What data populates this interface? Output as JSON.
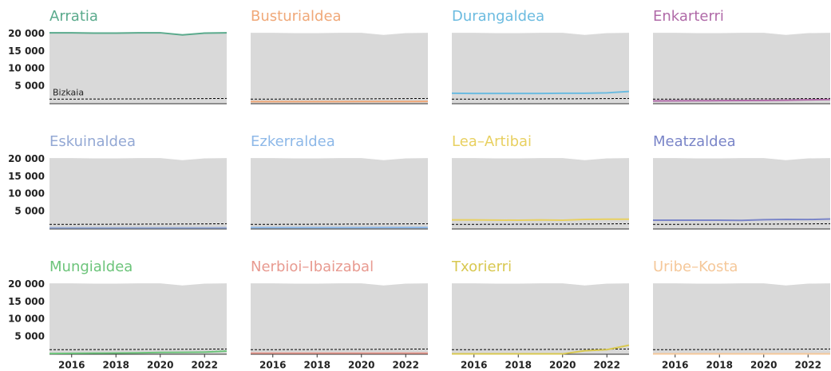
{
  "chart_data": {
    "type": "line",
    "x": [
      2015,
      2016,
      2017,
      2018,
      2019,
      2020,
      2021,
      2022,
      2023
    ],
    "xlim": [
      2015,
      2023
    ],
    "xticks": [
      2016,
      2018,
      2020,
      2022
    ],
    "ylim": [
      0,
      21000
    ],
    "yticks": [
      {
        "value": 5000,
        "label": "5 000"
      },
      {
        "value": 10000,
        "label": "10 000"
      },
      {
        "value": 15000,
        "label": "15 000"
      },
      {
        "value": 20000,
        "label": "20 000"
      }
    ],
    "reference": {
      "name": "Bizkaia",
      "color": "#000000",
      "values": [
        1300,
        1320,
        1340,
        1360,
        1380,
        1400,
        1420,
        1460,
        1500
      ]
    },
    "series": [
      {
        "name": "Arratia",
        "color": "#5aaa8c",
        "values": [
          20300,
          20300,
          20200,
          20200,
          20300,
          20300,
          19700,
          20200,
          20300
        ]
      },
      {
        "name": "Busturialdea",
        "color": "#f0a878",
        "values": [
          600,
          600,
          600,
          600,
          600,
          620,
          620,
          640,
          650
        ]
      },
      {
        "name": "Durangaldea",
        "color": "#6bbbe0",
        "values": [
          3000,
          2950,
          2950,
          2950,
          2950,
          3000,
          3000,
          3100,
          3500
        ]
      },
      {
        "name": "Enkarterri",
        "color": "#b06aa8",
        "values": [
          800,
          820,
          850,
          880,
          900,
          950,
          1000,
          1100,
          1200
        ]
      },
      {
        "name": "Eskuinaldea",
        "color": "#93a8d4",
        "values": [
          300,
          300,
          300,
          300,
          300,
          300,
          300,
          300,
          300
        ]
      },
      {
        "name": "Ezkerraldea",
        "color": "#8db8e8",
        "values": [
          400,
          400,
          400,
          400,
          400,
          400,
          420,
          420,
          420
        ]
      },
      {
        "name": "Lea–Artibai",
        "color": "#e8d060",
        "values": [
          2600,
          2600,
          2550,
          2500,
          2600,
          2500,
          2750,
          2800,
          2800
        ]
      },
      {
        "name": "Meatzaldea",
        "color": "#7a85c8",
        "values": [
          2500,
          2500,
          2500,
          2500,
          2450,
          2650,
          2750,
          2700,
          2850
        ]
      },
      {
        "name": "Mungialdea",
        "color": "#6cc47a",
        "values": [
          200,
          250,
          300,
          350,
          400,
          500,
          550,
          600,
          900
        ]
      },
      {
        "name": "Nerbioi–Ibaizabal",
        "color": "#e89a90",
        "values": [
          300,
          300,
          300,
          300,
          300,
          300,
          300,
          300,
          300
        ]
      },
      {
        "name": "Txorierri",
        "color": "#d8c850",
        "values": [
          100,
          100,
          100,
          100,
          100,
          100,
          1000,
          1300,
          2600
        ]
      },
      {
        "name": "Uribe–Kosta",
        "color": "#f5c89a",
        "values": [
          100,
          100,
          100,
          100,
          100,
          100,
          100,
          100,
          100
        ]
      }
    ]
  }
}
